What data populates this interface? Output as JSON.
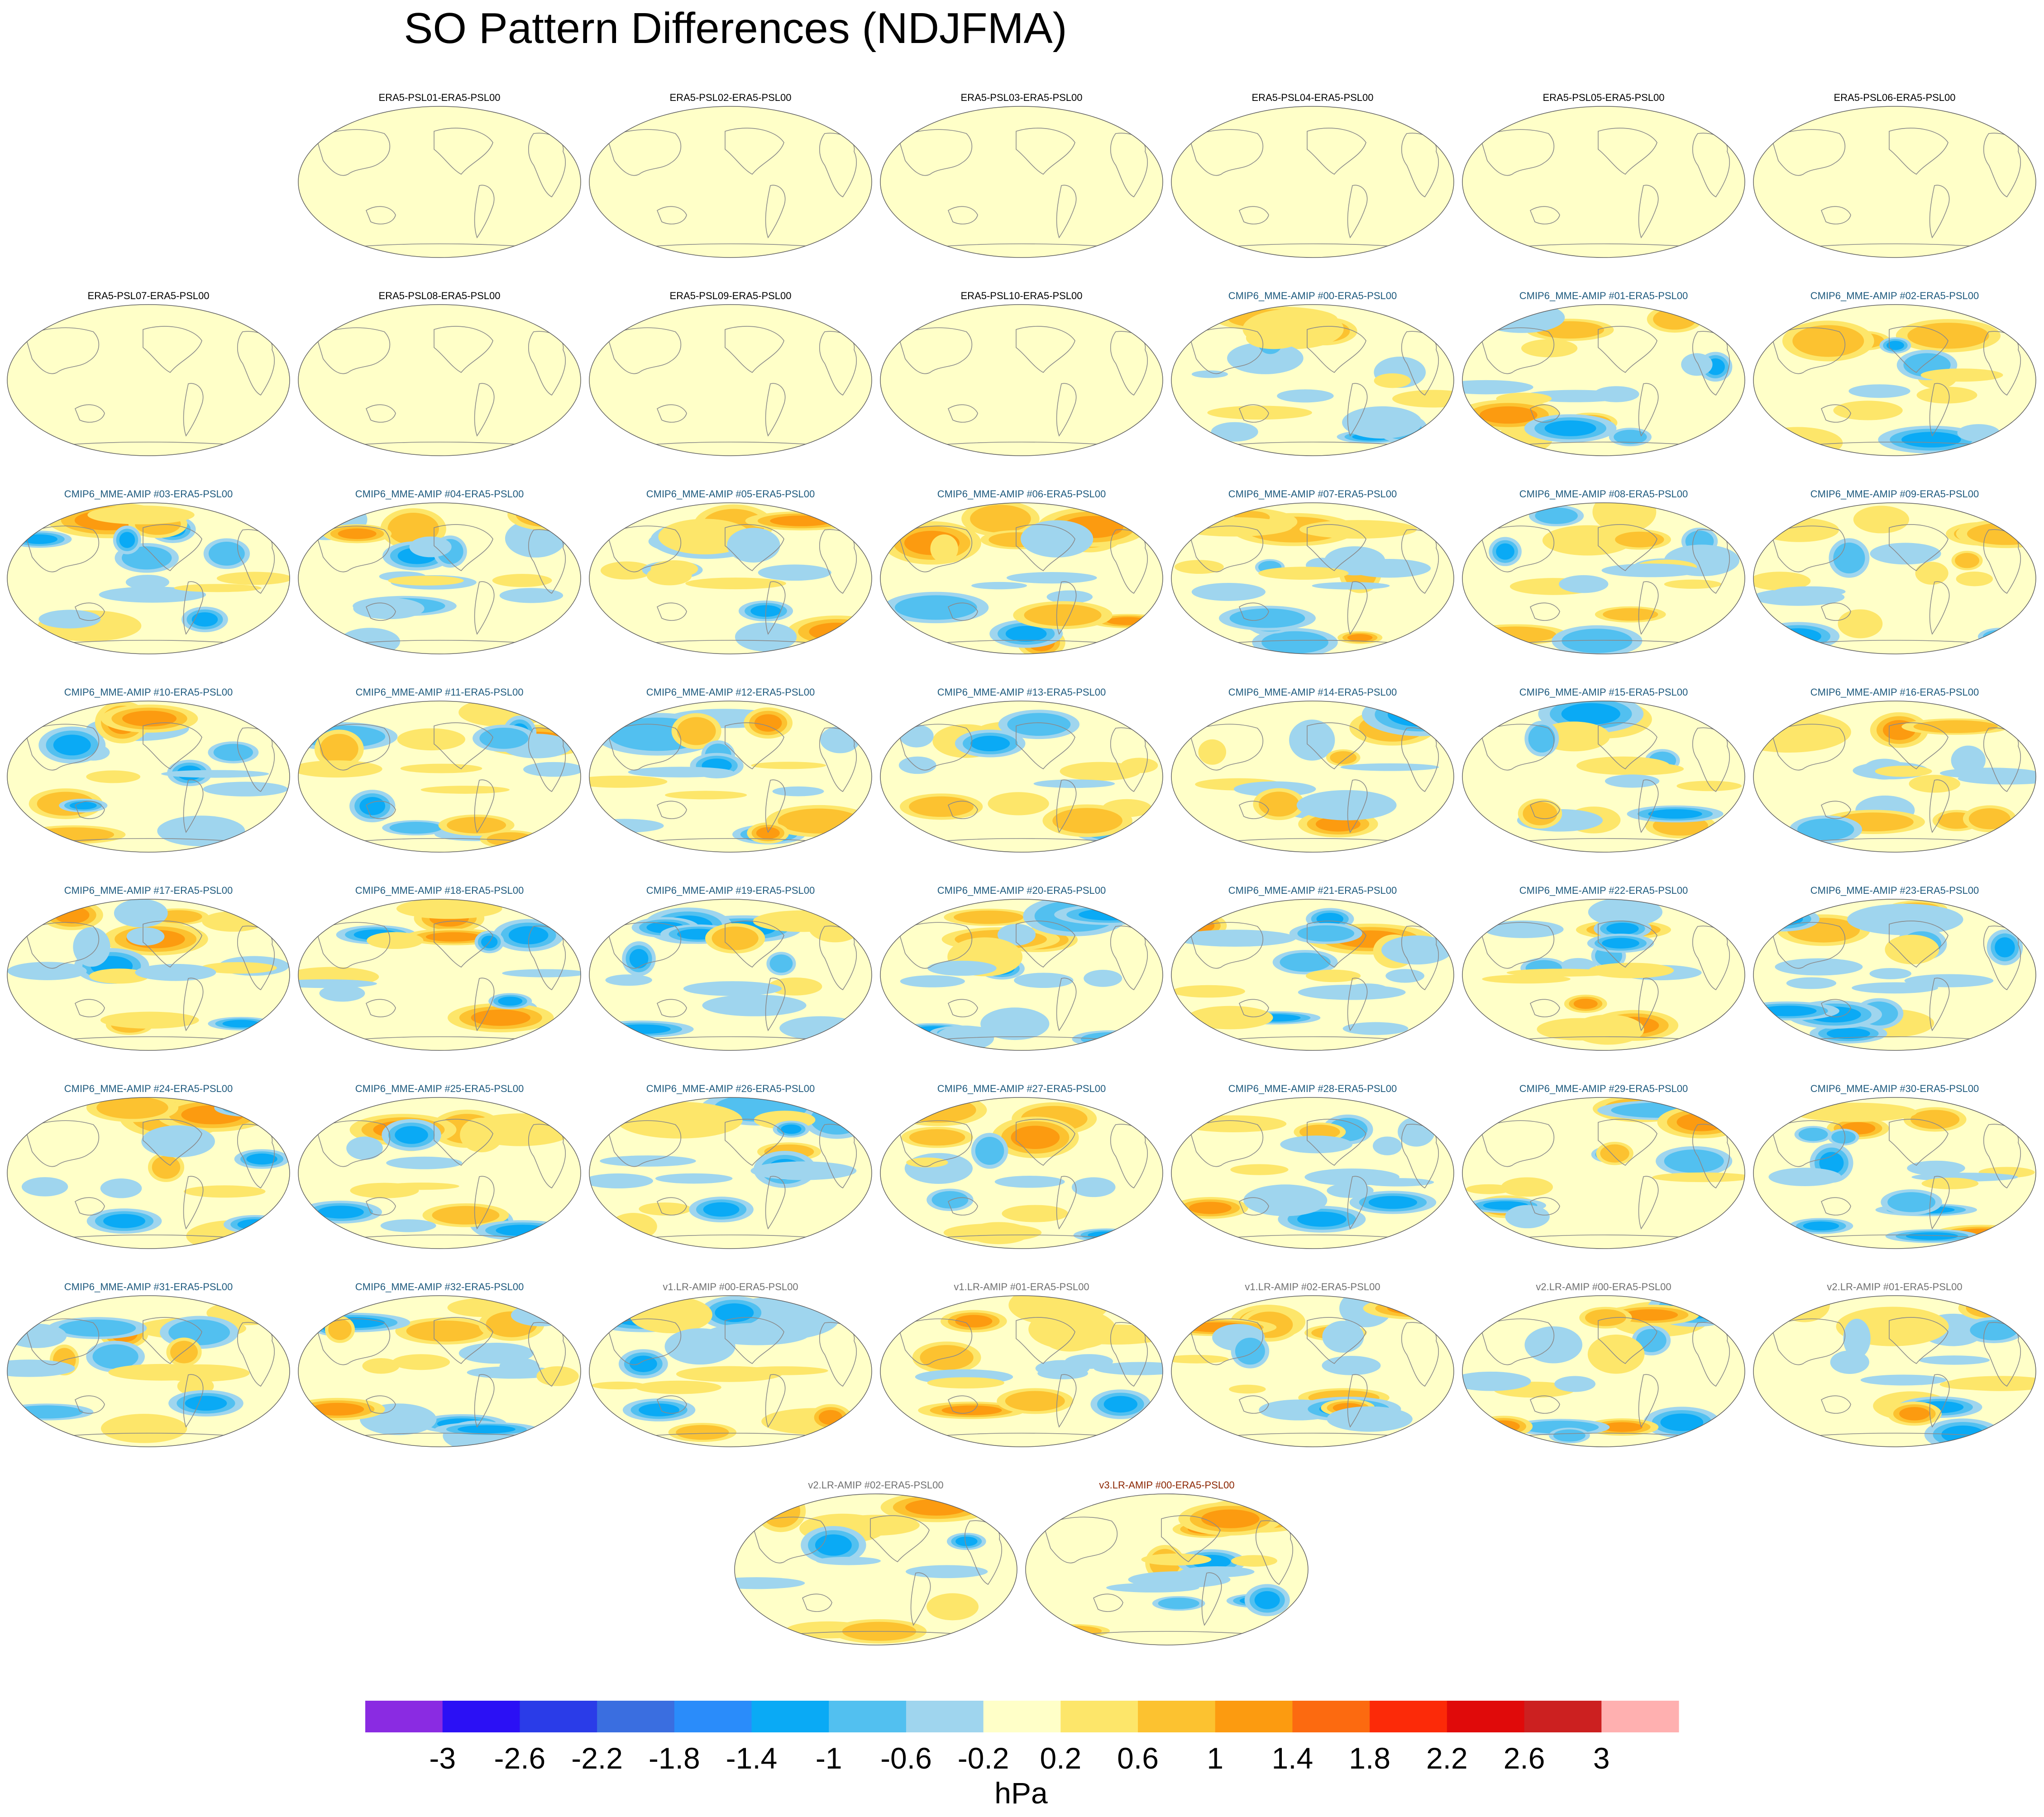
{
  "chart_data": {
    "type": "heatmap",
    "title": "SO Pattern Differences (NDJFMA)",
    "colorbar": {
      "unit": "hPa",
      "tick_labels": [
        "-3",
        "-2.6",
        "-2.2",
        "-1.8",
        "-1.4",
        "-1",
        "-0.6",
        "-0.2",
        "0.2",
        "0.6",
        "1",
        "1.4",
        "1.8",
        "2.2",
        "2.6",
        "3"
      ],
      "levels": [
        -3,
        -2.6,
        -2.2,
        -1.8,
        -1.4,
        -1,
        -0.6,
        -0.2,
        0.2,
        0.6,
        1,
        1.4,
        1.8,
        2.2,
        2.6,
        3
      ],
      "colors": [
        "#8a2be2",
        "#2b10f5",
        "#2a3ce8",
        "#3a6ee0",
        "#2a8cfa",
        "#0aaaf5",
        "#52c0f0",
        "#9fd5ee",
        "#ffffc8",
        "#fde66a",
        "#fcc230",
        "#fc9b10",
        "#fc6a10",
        "#fc2a08",
        "#e00a0a",
        "#cc2020",
        "#ffb0b0"
      ]
    },
    "panels": [
      {
        "label": "ERA5-PSL01-ERA5-PSL00",
        "group": "era5"
      },
      {
        "label": "ERA5-PSL02-ERA5-PSL00",
        "group": "era5"
      },
      {
        "label": "ERA5-PSL03-ERA5-PSL00",
        "group": "era5"
      },
      {
        "label": "ERA5-PSL04-ERA5-PSL00",
        "group": "era5"
      },
      {
        "label": "ERA5-PSL05-ERA5-PSL00",
        "group": "era5"
      },
      {
        "label": "ERA5-PSL06-ERA5-PSL00",
        "group": "era5"
      },
      {
        "label": "ERA5-PSL07-ERA5-PSL00",
        "group": "era5"
      },
      {
        "label": "ERA5-PSL08-ERA5-PSL00",
        "group": "era5"
      },
      {
        "label": "ERA5-PSL09-ERA5-PSL00",
        "group": "era5"
      },
      {
        "label": "ERA5-PSL10-ERA5-PSL00",
        "group": "era5"
      },
      {
        "label": "CMIP6_MME-AMIP  #00-ERA5-PSL00",
        "group": "cmip6"
      },
      {
        "label": "CMIP6_MME-AMIP  #01-ERA5-PSL00",
        "group": "cmip6"
      },
      {
        "label": "CMIP6_MME-AMIP  #02-ERA5-PSL00",
        "group": "cmip6"
      },
      {
        "label": "CMIP6_MME-AMIP  #03-ERA5-PSL00",
        "group": "cmip6"
      },
      {
        "label": "CMIP6_MME-AMIP  #04-ERA5-PSL00",
        "group": "cmip6"
      },
      {
        "label": "CMIP6_MME-AMIP  #05-ERA5-PSL00",
        "group": "cmip6"
      },
      {
        "label": "CMIP6_MME-AMIP  #06-ERA5-PSL00",
        "group": "cmip6"
      },
      {
        "label": "CMIP6_MME-AMIP  #07-ERA5-PSL00",
        "group": "cmip6"
      },
      {
        "label": "CMIP6_MME-AMIP  #08-ERA5-PSL00",
        "group": "cmip6"
      },
      {
        "label": "CMIP6_MME-AMIP  #09-ERA5-PSL00",
        "group": "cmip6"
      },
      {
        "label": "CMIP6_MME-AMIP  #10-ERA5-PSL00",
        "group": "cmip6"
      },
      {
        "label": "CMIP6_MME-AMIP  #11-ERA5-PSL00",
        "group": "cmip6"
      },
      {
        "label": "CMIP6_MME-AMIP  #12-ERA5-PSL00",
        "group": "cmip6"
      },
      {
        "label": "CMIP6_MME-AMIP  #13-ERA5-PSL00",
        "group": "cmip6"
      },
      {
        "label": "CMIP6_MME-AMIP  #14-ERA5-PSL00",
        "group": "cmip6"
      },
      {
        "label": "CMIP6_MME-AMIP  #15-ERA5-PSL00",
        "group": "cmip6"
      },
      {
        "label": "CMIP6_MME-AMIP  #16-ERA5-PSL00",
        "group": "cmip6"
      },
      {
        "label": "CMIP6_MME-AMIP  #17-ERA5-PSL00",
        "group": "cmip6"
      },
      {
        "label": "CMIP6_MME-AMIP  #18-ERA5-PSL00",
        "group": "cmip6"
      },
      {
        "label": "CMIP6_MME-AMIP  #19-ERA5-PSL00",
        "group": "cmip6"
      },
      {
        "label": "CMIP6_MME-AMIP  #20-ERA5-PSL00",
        "group": "cmip6"
      },
      {
        "label": "CMIP6_MME-AMIP  #21-ERA5-PSL00",
        "group": "cmip6"
      },
      {
        "label": "CMIP6_MME-AMIP  #22-ERA5-PSL00",
        "group": "cmip6"
      },
      {
        "label": "CMIP6_MME-AMIP  #23-ERA5-PSL00",
        "group": "cmip6"
      },
      {
        "label": "CMIP6_MME-AMIP  #24-ERA5-PSL00",
        "group": "cmip6"
      },
      {
        "label": "CMIP6_MME-AMIP  #25-ERA5-PSL00",
        "group": "cmip6"
      },
      {
        "label": "CMIP6_MME-AMIP  #26-ERA5-PSL00",
        "group": "cmip6"
      },
      {
        "label": "CMIP6_MME-AMIP  #27-ERA5-PSL00",
        "group": "cmip6"
      },
      {
        "label": "CMIP6_MME-AMIP  #28-ERA5-PSL00",
        "group": "cmip6"
      },
      {
        "label": "CMIP6_MME-AMIP  #29-ERA5-PSL00",
        "group": "cmip6"
      },
      {
        "label": "CMIP6_MME-AMIP  #30-ERA5-PSL00",
        "group": "cmip6"
      },
      {
        "label": "CMIP6_MME-AMIP  #31-ERA5-PSL00",
        "group": "cmip6"
      },
      {
        "label": "CMIP6_MME-AMIP  #32-ERA5-PSL00",
        "group": "cmip6"
      },
      {
        "label": "v1.LR-AMIP  #00-ERA5-PSL00",
        "group": "v1"
      },
      {
        "label": "v1.LR-AMIP  #01-ERA5-PSL00",
        "group": "v1"
      },
      {
        "label": "v1.LR-AMIP  #02-ERA5-PSL00",
        "group": "v1"
      },
      {
        "label": "v2.LR-AMIP  #00-ERA5-PSL00",
        "group": "v2"
      },
      {
        "label": "v2.LR-AMIP  #01-ERA5-PSL00",
        "group": "v2"
      },
      {
        "label": "v2.LR-AMIP  #02-ERA5-PSL00",
        "group": "v2"
      },
      {
        "label": "v3.LR-AMIP  #00-ERA5-PSL00",
        "group": "v3"
      }
    ]
  },
  "label_colors": {
    "era5": "#000000",
    "cmip6": "#1e5a7e",
    "v1": "#707070",
    "v2": "#707070",
    "v3": "#8b2500"
  }
}
